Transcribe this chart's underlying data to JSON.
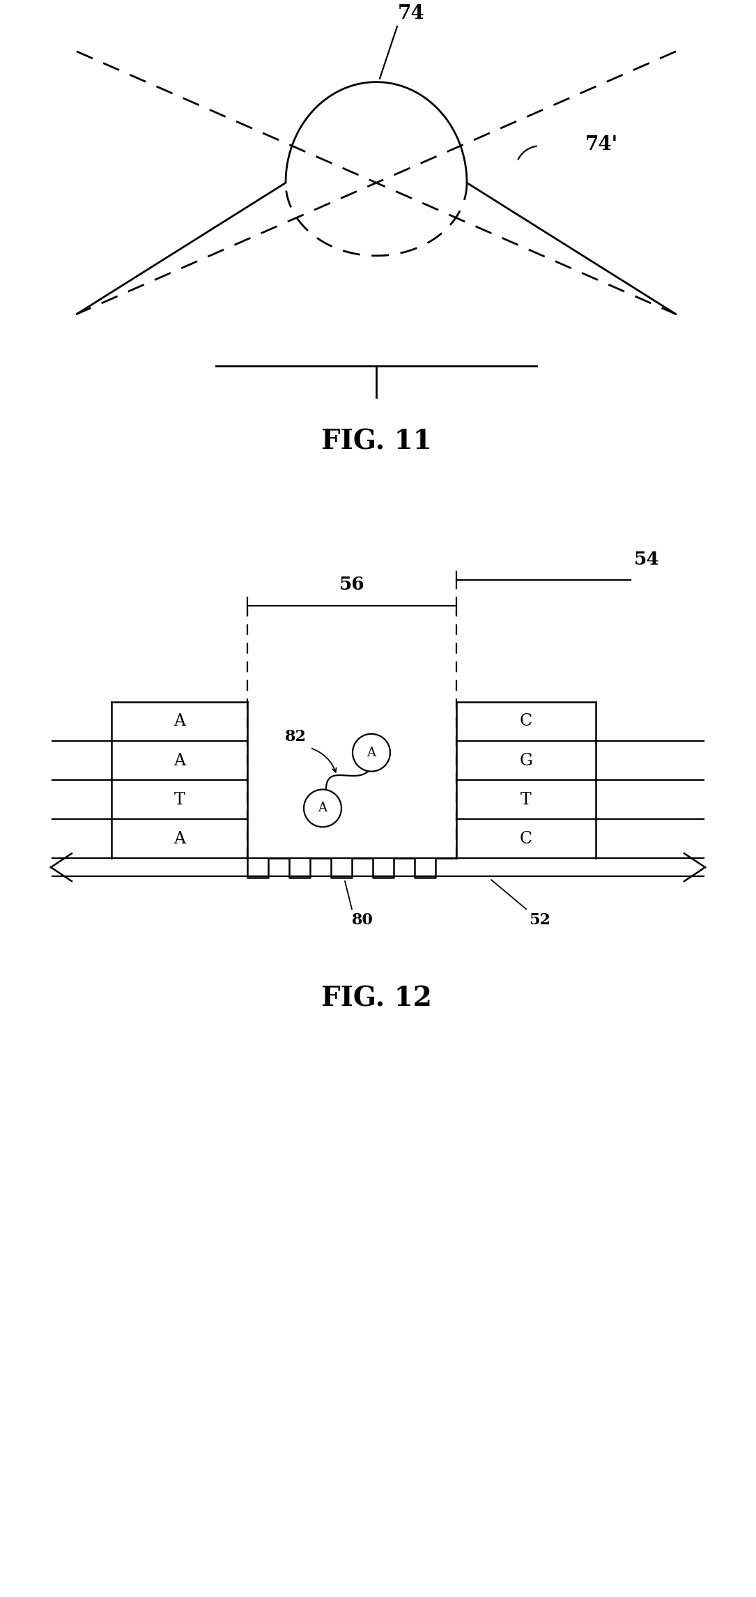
{
  "fig_width": 10.85,
  "fig_height": 22.91,
  "bg_color": "#ffffff",
  "line_color": "#000000",
  "fig11_label": "FIG. 11",
  "fig12_label": "FIG. 12",
  "label_74": "74",
  "label_74p": "74'",
  "label_56": "56",
  "label_54": "54",
  "label_80": "80",
  "label_52": "52",
  "label_82": "82",
  "left_letters": [
    "A",
    "A",
    "T",
    "A"
  ],
  "right_letters": [
    "C",
    "G",
    "T",
    "C"
  ],
  "center_letter": "A",
  "center_letter2": "A"
}
